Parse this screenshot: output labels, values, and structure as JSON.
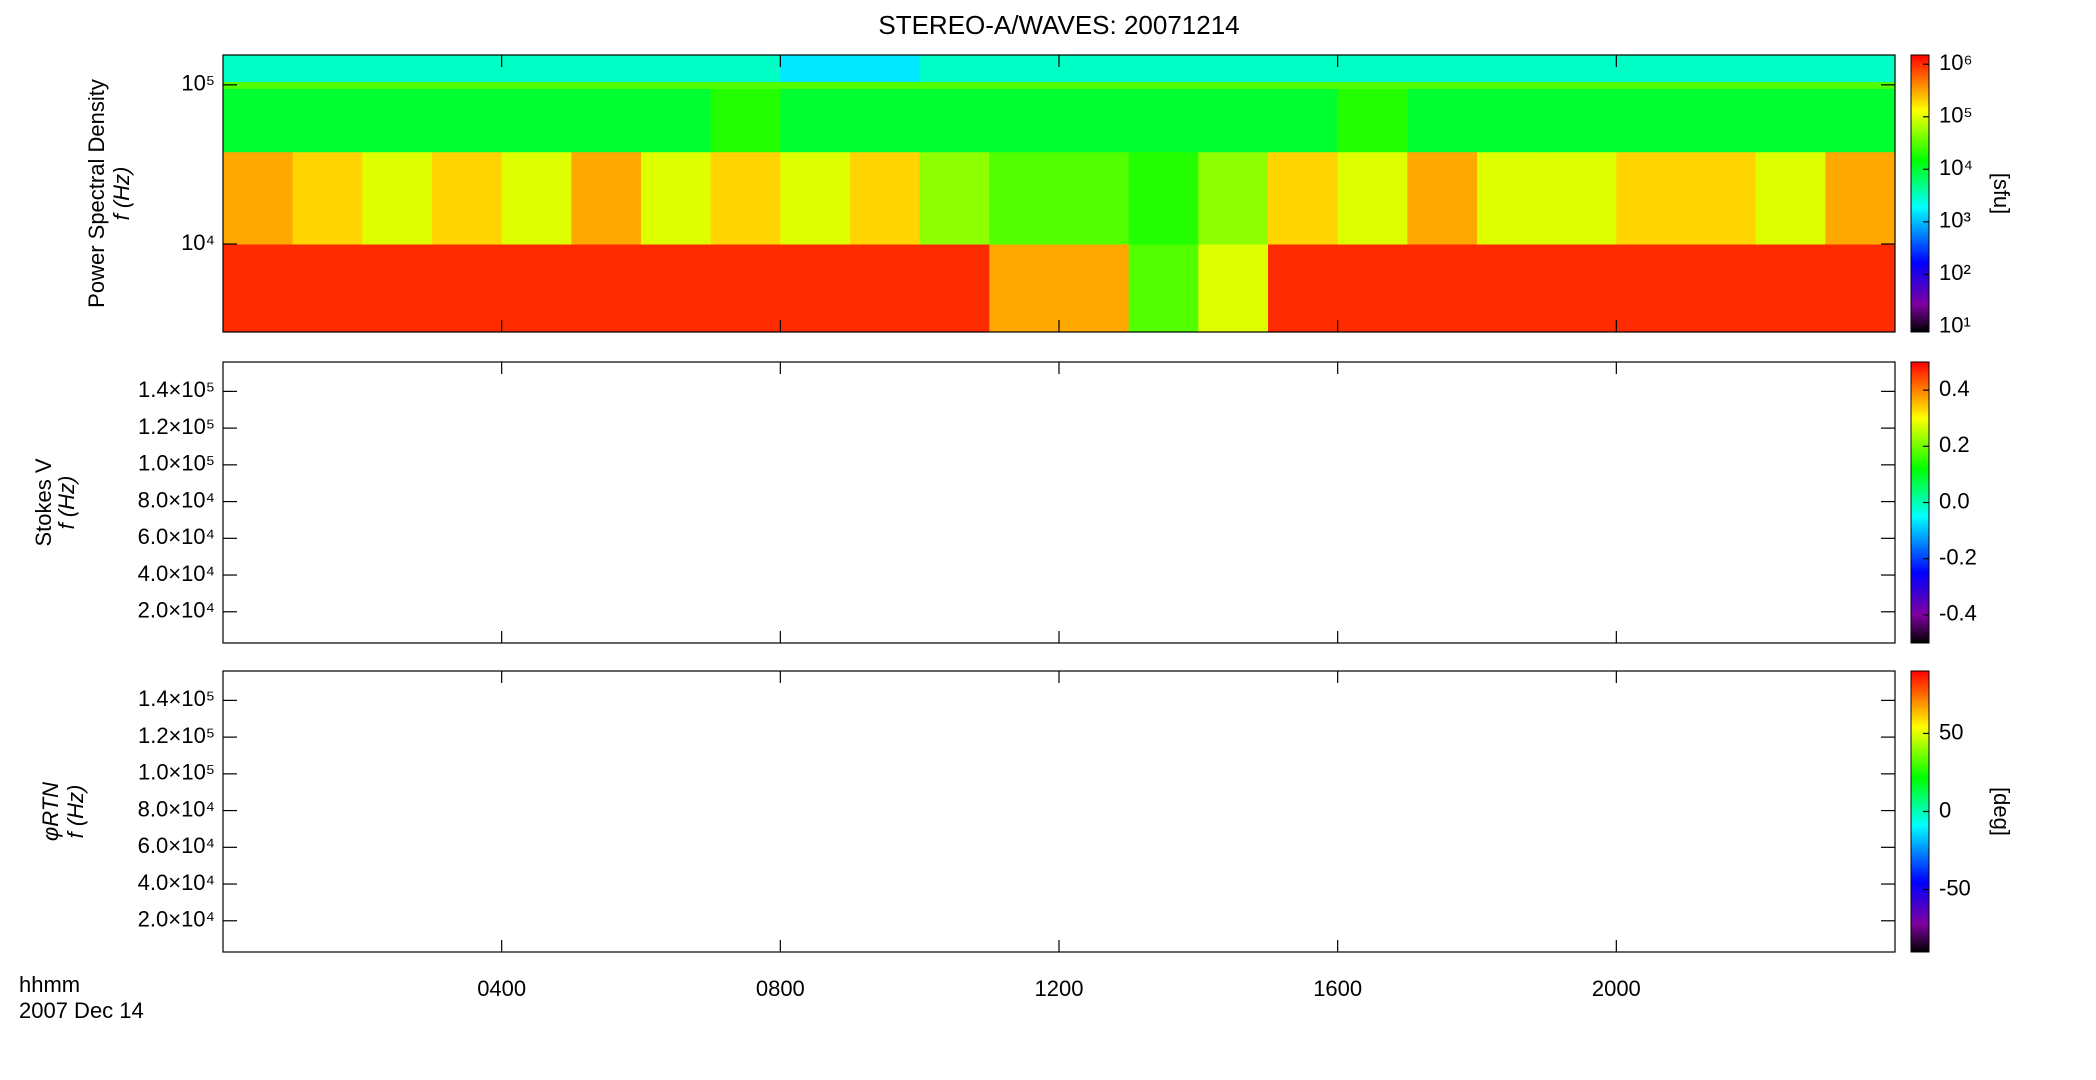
{
  "chart_data": [
    {
      "type": "heatmap",
      "title": "STEREO-A/WAVES: 20071214",
      "ylabel": [
        "Power Spectral Density",
        "f (Hz)"
      ],
      "yscale": "log",
      "ylim": [
        2800,
        154000
      ],
      "yticks": [
        {
          "value": 10000,
          "label": "10⁴"
        },
        {
          "value": 100000,
          "label": "10⁵"
        }
      ],
      "xbins": [
        0,
        1,
        2,
        3,
        4,
        5,
        6,
        7,
        8,
        9,
        10,
        11,
        12,
        13,
        14,
        15,
        16,
        17,
        18,
        19,
        20,
        21,
        22,
        23,
        24
      ],
      "ybins": [
        2800,
        10000,
        38000,
        95000,
        105000,
        154000
      ],
      "values": [
        [
          1000000,
          1000000,
          1000000,
          1000000,
          1000000,
          1000000,
          1000000,
          1000000,
          1000000,
          1000000,
          1000000,
          300000,
          300000,
          30000,
          100000,
          1000000,
          1000000,
          1000000,
          1000000,
          1000000,
          1000000,
          1000000,
          1000000,
          1000000
        ],
        [
          300000,
          200000,
          100000,
          200000,
          100000,
          300000,
          100000,
          200000,
          100000,
          200000,
          50000,
          30000,
          30000,
          20000,
          50000,
          200000,
          100000,
          300000,
          100000,
          100000,
          200000,
          200000,
          100000,
          300000
        ],
        [
          10000,
          10000,
          10000,
          10000,
          10000,
          10000,
          10000,
          20000,
          10000,
          10000,
          10000,
          10000,
          10000,
          10000,
          10000,
          10000,
          20000,
          10000,
          10000,
          10000,
          10000,
          10000,
          10000,
          10000
        ],
        [
          30000,
          30000,
          30000,
          30000,
          30000,
          30000,
          30000,
          30000,
          30000,
          30000,
          30000,
          30000,
          30000,
          30000,
          30000,
          30000,
          30000,
          30000,
          30000,
          30000,
          30000,
          30000,
          30000,
          30000
        ],
        [
          3000,
          3000,
          3000,
          3000,
          3000,
          3000,
          3000,
          3000,
          1500,
          1500,
          3000,
          3000,
          3000,
          3000,
          3000,
          3000,
          3000,
          3000,
          3000,
          3000,
          3000,
          3000,
          3000,
          3000
        ]
      ],
      "zscale": "log",
      "zlim": [
        8,
        1500000
      ],
      "zlabel": "[sfu]",
      "zticks": [
        {
          "value": 10,
          "label": "10¹"
        },
        {
          "value": 100,
          "label": "10²"
        },
        {
          "value": 1000,
          "label": "10³"
        },
        {
          "value": 10000,
          "label": "10⁴"
        },
        {
          "value": 100000,
          "label": "10⁵"
        },
        {
          "value": 1000000,
          "label": "10⁶"
        }
      ]
    },
    {
      "type": "heatmap",
      "ylabel": [
        "Stokes V",
        "f (Hz)"
      ],
      "ylim": [
        3000,
        156000
      ],
      "yticks": [
        {
          "value": 20000,
          "label": "2.0×10⁴"
        },
        {
          "value": 40000,
          "label": "4.0×10⁴"
        },
        {
          "value": 60000,
          "label": "6.0×10⁴"
        },
        {
          "value": 80000,
          "label": "8.0×10⁴"
        },
        {
          "value": 100000,
          "label": "1.0×10⁵"
        },
        {
          "value": 120000,
          "label": "1.2×10⁵"
        },
        {
          "value": 140000,
          "label": "1.4×10⁵"
        }
      ],
      "zlim": [
        -0.5,
        0.5
      ],
      "zticks": [
        -0.4,
        -0.2,
        {
          "value": 0,
          "label": "0.0"
        },
        0.2,
        0.4
      ]
    },
    {
      "type": "heatmap",
      "ylabel": [
        "φRTN",
        "f (Hz)"
      ],
      "ylim": [
        3000,
        156000
      ],
      "yticks": [
        {
          "value": 20000,
          "label": "2.0×10⁴"
        },
        {
          "value": 40000,
          "label": "4.0×10⁴"
        },
        {
          "value": 60000,
          "label": "6.0×10⁴"
        },
        {
          "value": 80000,
          "label": "8.0×10⁴"
        },
        {
          "value": 100000,
          "label": "1.0×10⁵"
        },
        {
          "value": 120000,
          "label": "1.2×10⁵"
        },
        {
          "value": 140000,
          "label": "1.4×10⁵"
        }
      ],
      "zlim": [
        -90,
        90
      ],
      "zlabel": "[deg]",
      "zticks": [
        -50,
        0,
        50
      ],
      "xlim": [
        0,
        24
      ],
      "xlabel": "hhmm",
      "date": "2007 Dec 14",
      "xticks": [
        {
          "value": 4,
          "label": "0400"
        },
        {
          "value": 8,
          "label": "0800"
        },
        {
          "value": 12,
          "label": "1200"
        },
        {
          "value": 16,
          "label": "1600"
        },
        {
          "value": 20,
          "label": "2000"
        }
      ]
    }
  ]
}
